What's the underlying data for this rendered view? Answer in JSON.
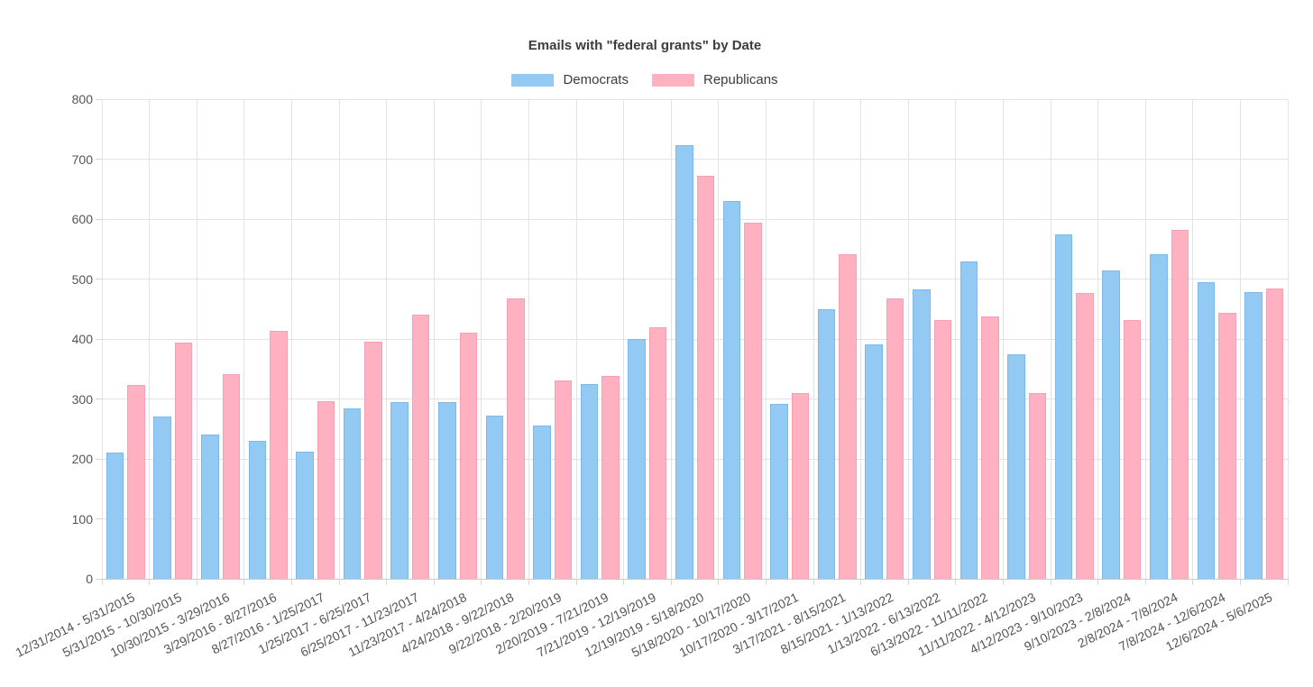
{
  "chart_data": {
    "type": "bar",
    "title": "Emails with \"federal grants\" by Date",
    "xlabel": "",
    "ylabel": "",
    "ylim": [
      0,
      800
    ],
    "yticks": [
      0,
      100,
      200,
      300,
      400,
      500,
      600,
      700,
      800
    ],
    "grid": true,
    "legend_position": "top",
    "axis_text_color": "#545454",
    "title_color": "#3c3c3c",
    "categories": [
      "12/31/2014 - 5/31/2015",
      "5/31/2015 - 10/30/2015",
      "10/30/2015 - 3/29/2016",
      "3/29/2016 - 8/27/2016",
      "8/27/2016 - 1/25/2017",
      "1/25/2017 - 6/25/2017",
      "6/25/2017 - 11/23/2017",
      "11/23/2017 - 4/24/2018",
      "4/24/2018 - 9/22/2018",
      "9/22/2018 - 2/20/2019",
      "2/20/2019 - 7/21/2019",
      "7/21/2019 - 12/19/2019",
      "12/19/2019 - 5/18/2020",
      "5/18/2020 - 10/17/2020",
      "10/17/2020 - 3/17/2021",
      "3/17/2021 - 8/15/2021",
      "8/15/2021 - 1/13/2022",
      "1/13/2022 - 6/13/2022",
      "6/13/2022 - 11/11/2022",
      "11/11/2022 - 4/12/2023",
      "4/12/2023 - 9/10/2023",
      "9/10/2023 - 2/8/2024",
      "2/8/2024 - 7/8/2024",
      "7/8/2024 - 12/6/2024",
      "12/6/2024 - 5/6/2025"
    ],
    "series": [
      {
        "name": "Democrats",
        "color": "#92CAF3",
        "border_color": "#7EB8E8",
        "values": [
          211,
          270,
          240,
          230,
          212,
          284,
          295,
          294,
          272,
          255,
          325,
          400,
          724,
          630,
          291,
          449,
          391,
          482,
          530,
          375,
          574,
          515,
          541,
          494,
          478
        ]
      },
      {
        "name": "Republicans",
        "color": "#FFB1C1",
        "border_color": "#F79FB4",
        "values": [
          324,
          394,
          341,
          414,
          296,
          395,
          440,
          410,
          468,
          331,
          338,
          419,
          672,
          594,
          310,
          542,
          468,
          432,
          438,
          310,
          476,
          432,
          582,
          443,
          484
        ]
      }
    ]
  }
}
